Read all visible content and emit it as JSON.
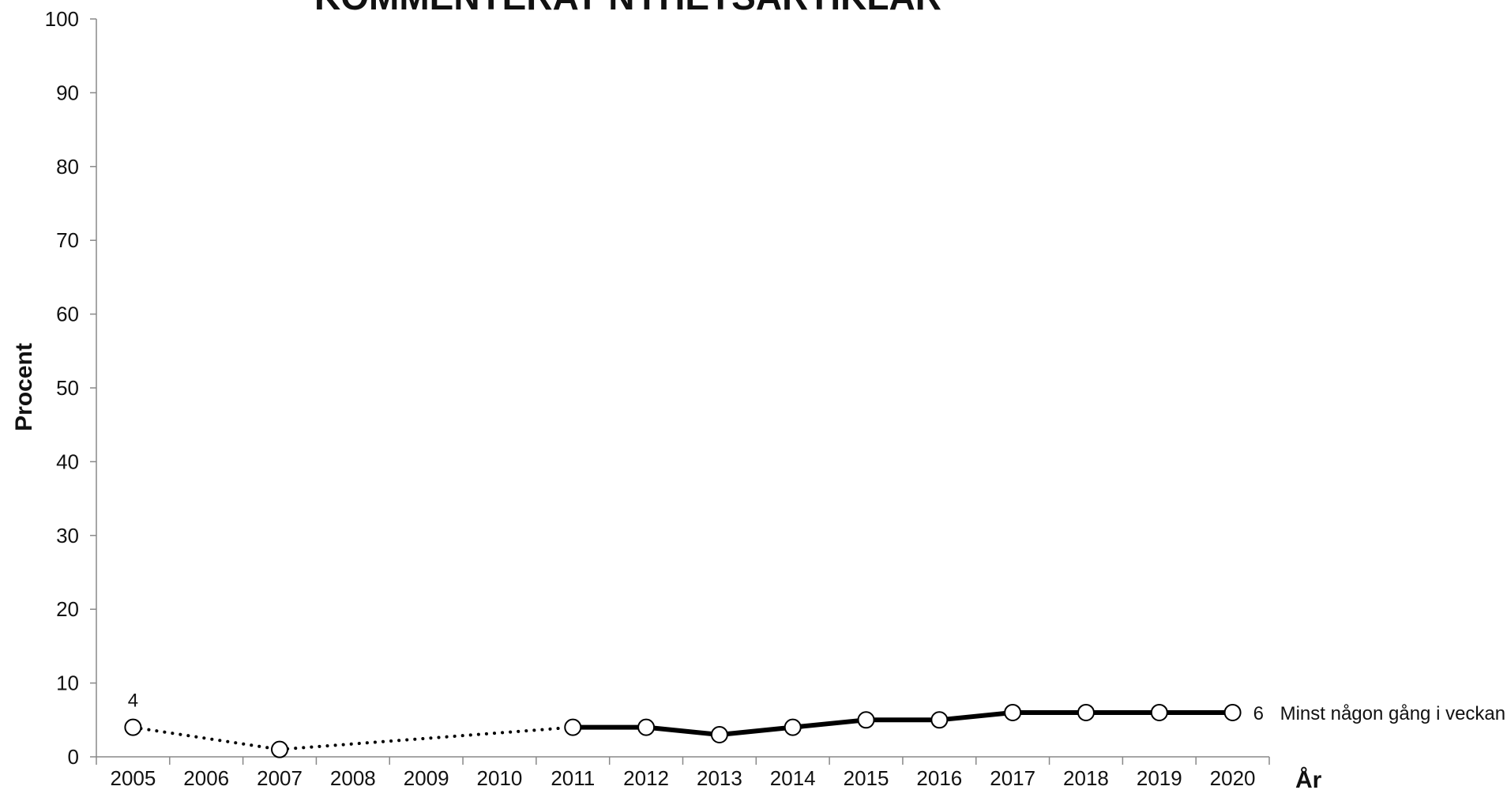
{
  "chart_data": {
    "type": "line",
    "title": "KOMMENTERAT NYHETSARTIKLAR",
    "xlabel": "År",
    "ylabel": "Procent",
    "x": [
      2005,
      2006,
      2007,
      2008,
      2009,
      2010,
      2011,
      2012,
      2013,
      2014,
      2015,
      2016,
      2017,
      2018,
      2019,
      2020
    ],
    "ylim": [
      0,
      100
    ],
    "yticks": [
      0,
      10,
      20,
      30,
      40,
      50,
      60,
      70,
      80,
      90,
      100
    ],
    "grid": false,
    "legend": "none",
    "series": [
      {
        "name": "Minst någon gång i veckan",
        "color": "#000000",
        "points": [
          {
            "x": 2005,
            "y": 4
          },
          {
            "x": 2007,
            "y": 1
          },
          {
            "x": 2011,
            "y": 4
          },
          {
            "x": 2012,
            "y": 4
          },
          {
            "x": 2013,
            "y": 3
          },
          {
            "x": 2014,
            "y": 4
          },
          {
            "x": 2015,
            "y": 5
          },
          {
            "x": 2016,
            "y": 5
          },
          {
            "x": 2017,
            "y": 6
          },
          {
            "x": 2018,
            "y": 6
          },
          {
            "x": 2019,
            "y": 6
          },
          {
            "x": 2020,
            "y": 6
          }
        ],
        "dotted_until_year": 2011,
        "data_labels": [
          {
            "x": 2005,
            "text": "4"
          },
          {
            "x": 2020,
            "text": "6"
          }
        ]
      }
    ]
  }
}
